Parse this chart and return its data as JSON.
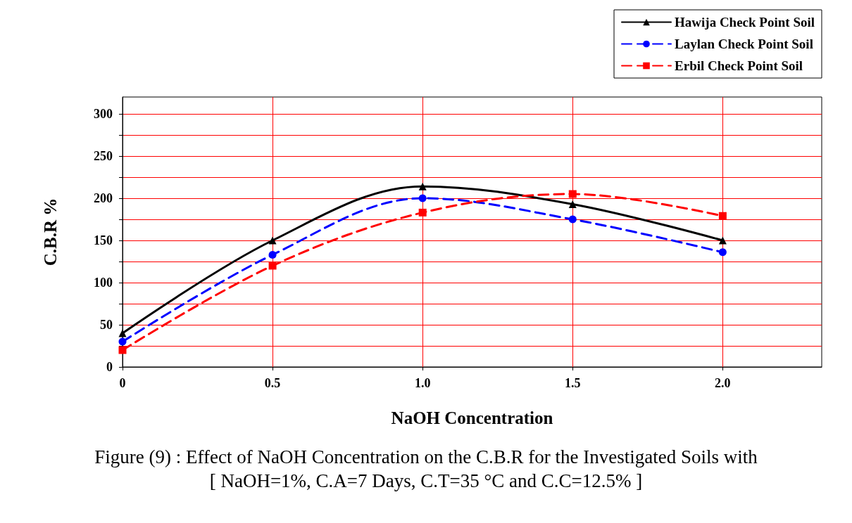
{
  "chart_data": {
    "type": "line",
    "title": "Figure (9) : Effect of NaOH Concentration on the C.B.R for the Investigated Soils with\n[ NaOH=1%, C.A=7 Days, C.T=35 °C and C.C=12.5% ]",
    "xlabel": "NaOH Concentration",
    "ylabel": "C.B.R %",
    "x": [
      0,
      0.5,
      1,
      1.5,
      2
    ],
    "series": [
      {
        "name": "Hawija Check Point Soil",
        "color": "#000000",
        "marker": "triangle",
        "line_style": "solid",
        "values": [
          40,
          150,
          214,
          193,
          150
        ]
      },
      {
        "name": "Laylan Check Point Soil",
        "color": "#0000ff",
        "marker": "circle",
        "line_style": "dashed",
        "values": [
          30,
          133,
          200,
          175,
          136
        ]
      },
      {
        "name": "Erbil Check Point Soil",
        "color": "#ff0000",
        "marker": "square",
        "line_style": "dashed",
        "values": [
          20,
          120,
          183,
          205,
          179
        ]
      }
    ],
    "xlim": [
      0,
      2.33
    ],
    "xticks": [
      0,
      0.5,
      {
        "value": 1,
        "label": "1.0"
      },
      1.5,
      {
        "value": 2,
        "label": "2.0"
      }
    ],
    "ylim": [
      0,
      320
    ],
    "yticks": [
      0,
      {
        "value": 25,
        "label": null
      },
      50,
      {
        "value": 75,
        "label": null
      },
      100,
      {
        "value": 125,
        "label": null
      },
      150,
      {
        "value": 175,
        "label": null
      },
      200,
      {
        "value": 225,
        "label": null
      },
      250,
      {
        "value": 275,
        "label": null
      },
      300
    ],
    "grid": true,
    "legend": "top right"
  }
}
